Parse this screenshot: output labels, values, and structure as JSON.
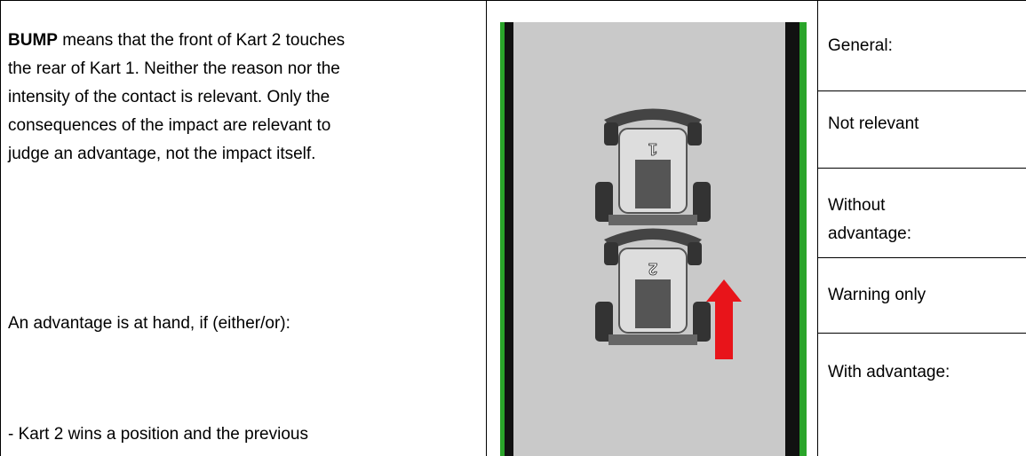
{
  "left": {
    "term": "BUMP",
    "lines": [
      "means that the front of Kart 2 touches",
      "the rear of Kart 1. Neither the reason nor the",
      "intensity of the contact is relevant. Only the",
      "consequences of the impact are relevant to",
      "judge an advantage, not the impact itself."
    ],
    "condition": "An advantage is at hand, if (either/or):",
    "item": "- Kart 2 wins a position and the previous"
  },
  "image": {
    "karts": [
      "1",
      "2"
    ]
  },
  "right": {
    "cells": [
      [
        "General:"
      ],
      [
        "Not relevant"
      ],
      [
        "Without",
        "advantage:"
      ],
      [
        "Warning only"
      ],
      [
        "With advantage:"
      ]
    ]
  }
}
